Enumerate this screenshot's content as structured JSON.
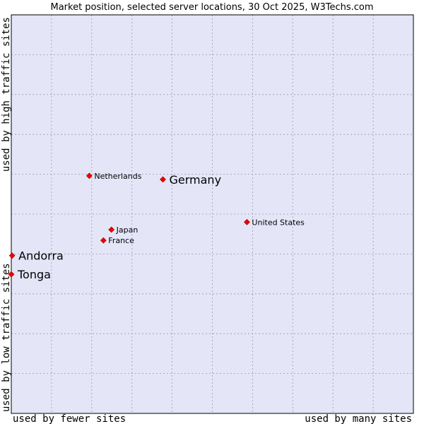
{
  "chart_data": {
    "type": "scatter",
    "title": "Market position, selected server locations, 30 Oct 2025, W3Techs.com",
    "xlabel_left": "used by fewer sites",
    "xlabel_right": "used by many sites",
    "ylabel_bottom": "used by low traffic sites",
    "ylabel_top": "used by high traffic sites",
    "xlim": [
      0,
      100
    ],
    "ylim": [
      0,
      100
    ],
    "grid": true,
    "colors": {
      "plot_bg": "#e4e6f8",
      "grid": "#9a9aaa",
      "border": "#000000",
      "marker": "#ee0000"
    },
    "points": [
      {
        "name": "Netherlands",
        "x": 19.4,
        "y": 59.6,
        "size": "small"
      },
      {
        "name": "Germany",
        "x": 37.7,
        "y": 58.7,
        "size": "large"
      },
      {
        "name": "United States",
        "x": 58.6,
        "y": 48.0,
        "size": "small"
      },
      {
        "name": "Japan",
        "x": 24.9,
        "y": 46.1,
        "size": "small"
      },
      {
        "name": "France",
        "x": 22.9,
        "y": 43.4,
        "size": "small"
      },
      {
        "name": "Andorra",
        "x": 0.2,
        "y": 39.6,
        "size": "large"
      },
      {
        "name": "Tonga",
        "x": 0.0,
        "y": 34.9,
        "size": "large"
      }
    ]
  }
}
